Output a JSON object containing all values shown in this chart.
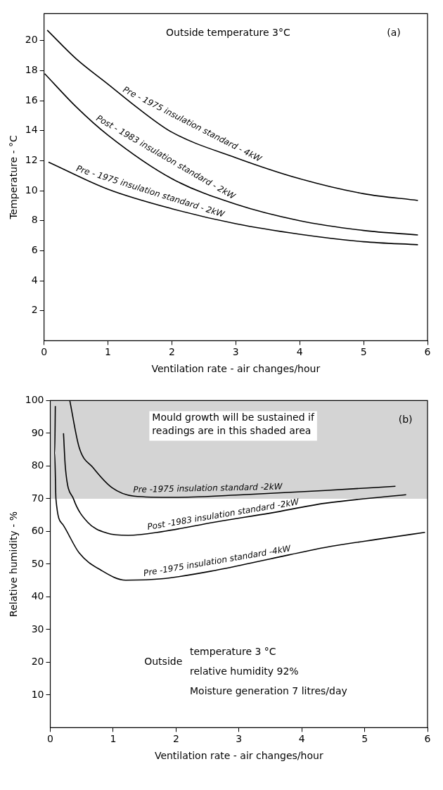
{
  "chart_data": [
    {
      "type": "line",
      "xlabel": "Ventilation rate - air changes/hour",
      "ylabel": "Temperature - °C",
      "xlim": [
        0,
        6
      ],
      "ylim": [
        0,
        21.8
      ],
      "xticks": [
        0,
        1,
        2,
        3,
        4,
        5,
        6
      ],
      "yticks": [
        2,
        4,
        6,
        8,
        10,
        12,
        14,
        16,
        18,
        20
      ],
      "grid": false,
      "legend": false,
      "marker": "none",
      "line_style": "solid",
      "annotations": [
        "Outside temperature 3°C",
        "(a)"
      ],
      "series": [
        {
          "name": "Pre - 1975 insulation standard - 4kW",
          "color": "#000000",
          "x": [
            0.05,
            0.5,
            1,
            1.5,
            2,
            3,
            4,
            5,
            5.85
          ],
          "values": [
            20.7,
            18.8,
            17.1,
            15.4,
            13.9,
            12.2,
            10.8,
            9.8,
            9.35
          ]
        },
        {
          "name": "Post - 1983 insulation standard - 2kW",
          "color": "#000000",
          "x": [
            0.01,
            0.5,
            1,
            2,
            3,
            4,
            5,
            5.85
          ],
          "values": [
            17.8,
            15.6,
            13.7,
            10.8,
            9.1,
            8.0,
            7.35,
            7.05
          ]
        },
        {
          "name": "Pre - 1975 insulation standard - 2kW",
          "color": "#000000",
          "x": [
            0.07,
            1,
            2,
            3,
            4,
            5,
            5.85
          ],
          "values": [
            11.9,
            10.1,
            8.8,
            7.8,
            7.1,
            6.6,
            6.4
          ]
        }
      ]
    },
    {
      "type": "line",
      "xlabel": "Ventilation rate - air changes/hour",
      "ylabel": "Relative humidity - %",
      "xlim": [
        0,
        6
      ],
      "ylim": [
        0,
        100
      ],
      "xticks": [
        0,
        1,
        2,
        3,
        4,
        5,
        6
      ],
      "yticks": [
        10,
        20,
        30,
        40,
        50,
        60,
        70,
        80,
        90,
        100
      ],
      "grid": false,
      "legend": false,
      "marker": "none",
      "line_style": "solid",
      "bands": [
        {
          "axis": "y",
          "from": 70,
          "to": 100,
          "label": "Mould growth will be sustained if readings are in this shaded area",
          "color": "#d4d4d4"
        }
      ],
      "annotations": [
        "(b)",
        "Outside",
        "temperature 3 °C",
        "relative humidity 92%",
        "Moisture generation 7 litres/day"
      ],
      "series": [
        {
          "name": "Pre -1975 insulation standard -2kW",
          "color": "#000000",
          "x": [
            0.31,
            0.46,
            0.68,
            0.98,
            1.33,
            1.98,
            3.07,
            4.37,
            5.49
          ],
          "values": [
            100,
            85.6,
            79.5,
            73.4,
            70.8,
            70.4,
            71.2,
            72.5,
            73.8
          ]
        },
        {
          "name": "Post -1983 insulation standard -2kW",
          "color": "#000000",
          "x": [
            0.21,
            0.24,
            0.37,
            0.59,
            0.9,
            1.24,
            1.77,
            2.63,
            3.5,
            4.37,
            5.66
          ],
          "values": [
            90,
            79.5,
            69.9,
            62.9,
            59.5,
            58.8,
            59.9,
            62.9,
            65.6,
            68.6,
            71.2
          ]
        },
        {
          "name": "Pre -1975 insulation standard -4kW",
          "color": "#000000",
          "x": [
            0.08,
            0.07,
            0.09,
            0.2,
            0.46,
            0.81,
            1.2,
            1.77,
            2.63,
            3.5,
            4.37,
            5.24,
            5.96
          ],
          "values": [
            98.3,
            83.9,
            69.9,
            62.1,
            53.4,
            48.1,
            45.1,
            45.5,
            48.1,
            51.6,
            55.1,
            57.7,
            59.7
          ]
        }
      ]
    }
  ]
}
